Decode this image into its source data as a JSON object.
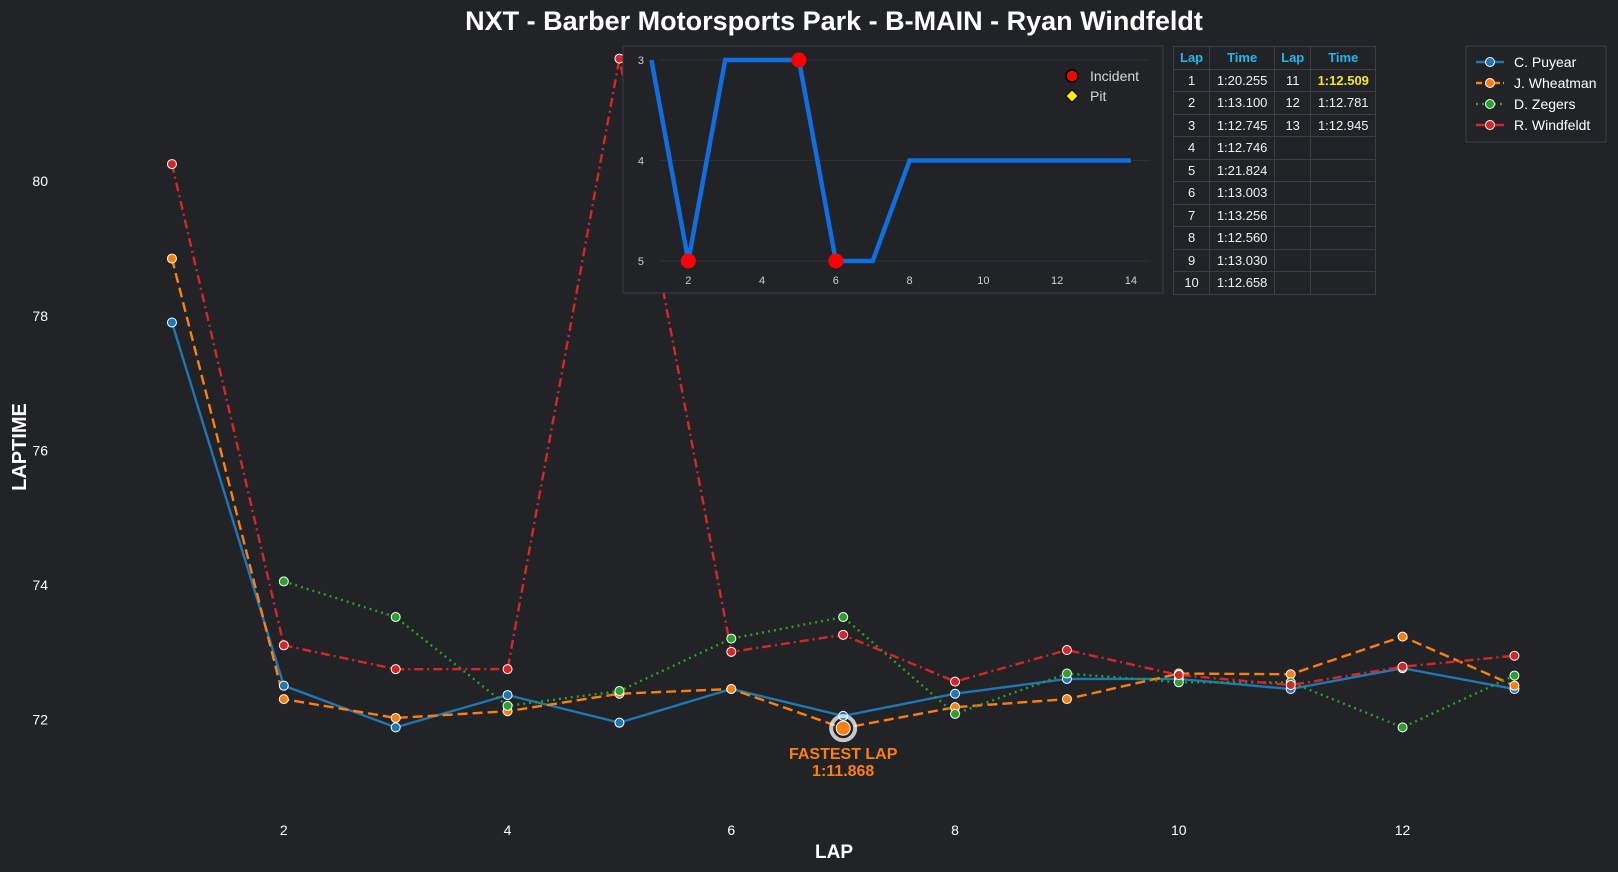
{
  "title": "NXT - Barber Motorsports Park - B-MAIN - Ryan Windfeldt",
  "colors": {
    "background": "#212327",
    "C. Puyear": "#1f77b4",
    "J. Wheatman": "#ff7f0e",
    "D. Zegers": "#2ca02c",
    "R. Windfeldt": "#d62728",
    "position_line": "#0f6fe0",
    "incident": "#ff0000",
    "pit": "#ffee00",
    "fastest": "#ff7f0e",
    "table_header": "#22b8e8",
    "table_best": "#f4e523"
  },
  "chart_data": [
    {
      "type": "line",
      "title": "NXT - Barber Motorsports Park - B-MAIN - Ryan Windfeldt",
      "xlabel": "LAP",
      "ylabel": "LAPTIME",
      "xlim": [
        0.5,
        13.3
      ],
      "ylim": [
        70.8,
        82.1
      ],
      "xticks": [
        2,
        4,
        6,
        8,
        10,
        12
      ],
      "yticks": [
        72,
        74,
        76,
        78,
        80
      ],
      "grid": false,
      "legend": "top-right",
      "x": [
        1,
        2,
        3,
        4,
        5,
        6,
        7,
        8,
        9,
        10,
        11,
        12,
        13
      ],
      "series": [
        {
          "name": "C. Puyear",
          "style": "solid",
          "values": [
            77.9,
            72.5,
            71.88,
            72.36,
            71.95,
            72.45,
            72.05,
            72.38,
            72.6,
            72.6,
            72.45,
            72.76,
            72.45
          ]
        },
        {
          "name": "J. Wheatman",
          "style": "dashed",
          "values": [
            78.85,
            72.3,
            72.02,
            72.12,
            72.38,
            72.45,
            71.868,
            72.18,
            72.3,
            72.68,
            72.67,
            73.23,
            72.5
          ]
        },
        {
          "name": "D. Zegers",
          "style": "dotted",
          "values": [
            null,
            74.05,
            73.52,
            72.2,
            72.42,
            73.2,
            73.52,
            72.08,
            72.68,
            72.55,
            72.55,
            71.88,
            72.65
          ]
        },
        {
          "name": "R. Windfeldt",
          "style": "dashdot",
          "values": [
            80.255,
            73.1,
            72.745,
            72.746,
            81.824,
            73.003,
            73.256,
            72.56,
            73.03,
            72.658,
            72.509,
            72.781,
            72.945
          ]
        }
      ],
      "annotations": [
        {
          "x": 7,
          "y": 71.868,
          "line1": "FASTEST LAP",
          "line2": "1:11.868"
        }
      ]
    },
    {
      "type": "line",
      "title": "",
      "xlabel": "",
      "ylabel": "",
      "xlim": [
        0.5,
        14.6
      ],
      "ylim": [
        5.1,
        2.9
      ],
      "xticks": [
        2,
        4,
        6,
        8,
        10,
        12,
        14
      ],
      "yticks": [
        3,
        4,
        5
      ],
      "legend": "top-right",
      "legend_labels": {
        "incident": "Incident",
        "pit": "Pit"
      },
      "x": [
        1,
        2,
        3,
        4,
        5,
        6,
        7,
        8,
        9,
        10,
        11,
        12,
        13,
        14
      ],
      "positions": [
        3,
        5,
        3,
        3,
        3,
        5,
        5,
        4,
        4,
        4,
        4,
        4,
        4,
        4
      ],
      "incident_laps": [
        2,
        5,
        6
      ],
      "pit_laps": []
    }
  ],
  "laptable": {
    "headers": [
      "Lap",
      "Time",
      "Lap",
      "Time"
    ],
    "rows": [
      [
        "1",
        "1:20.255",
        "11",
        "1:12.509"
      ],
      [
        "2",
        "1:13.100",
        "12",
        "1:12.781"
      ],
      [
        "3",
        "1:12.745",
        "13",
        "1:12.945"
      ],
      [
        "4",
        "1:12.746",
        "",
        ""
      ],
      [
        "5",
        "1:21.824",
        "",
        ""
      ],
      [
        "6",
        "1:13.003",
        "",
        ""
      ],
      [
        "7",
        "1:13.256",
        "",
        ""
      ],
      [
        "8",
        "1:12.560",
        "",
        ""
      ],
      [
        "9",
        "1:13.030",
        "",
        ""
      ],
      [
        "10",
        "1:12.658",
        "",
        ""
      ]
    ],
    "best_time": "1:12.509"
  }
}
